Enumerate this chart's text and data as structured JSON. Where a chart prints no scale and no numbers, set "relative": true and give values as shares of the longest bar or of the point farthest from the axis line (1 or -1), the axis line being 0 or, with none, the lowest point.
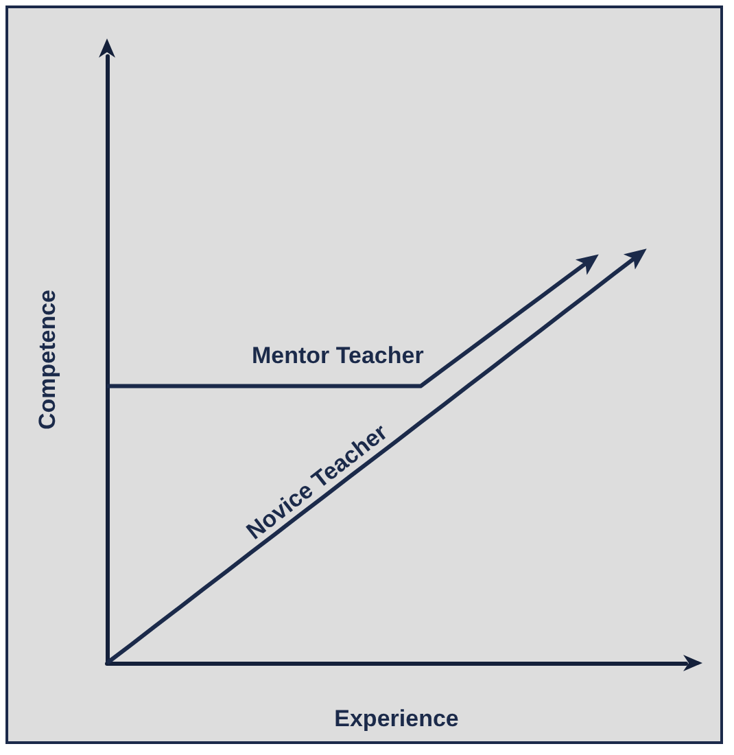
{
  "chart_data": {
    "type": "line",
    "relative": true,
    "xlabel": "Experience",
    "ylabel": "Competence",
    "categories": [
      null,
      null,
      null,
      null,
      null,
      null,
      null,
      null,
      null,
      null,
      null,
      null,
      null,
      null,
      null,
      null,
      null,
      null,
      null,
      null,
      null,
      null,
      null,
      null,
      null
    ],
    "series": [
      {
        "name": "Mentor Teacher",
        "color": "#1b2a4a",
        "values": [
          0.68,
          0.68,
          0.68,
          0.68,
          0.68,
          0.68,
          0.68,
          0.68,
          0.68,
          0.68,
          0.68,
          0.68,
          0.68,
          0.68,
          0.724,
          0.768,
          0.812,
          0.856,
          0.9,
          0.944,
          0.988,
          null,
          null,
          null,
          null
        ]
      },
      {
        "name": "Novice Teacher",
        "color": "#1b2a4a",
        "values": [
          0,
          0.045,
          0.091,
          0.136,
          0.182,
          0.227,
          0.273,
          0.318,
          0.364,
          0.409,
          0.455,
          0.5,
          0.545,
          0.591,
          0.636,
          0.682,
          0.727,
          0.773,
          0.818,
          0.864,
          0.909,
          0.955,
          1,
          null,
          null
        ]
      }
    ]
  }
}
